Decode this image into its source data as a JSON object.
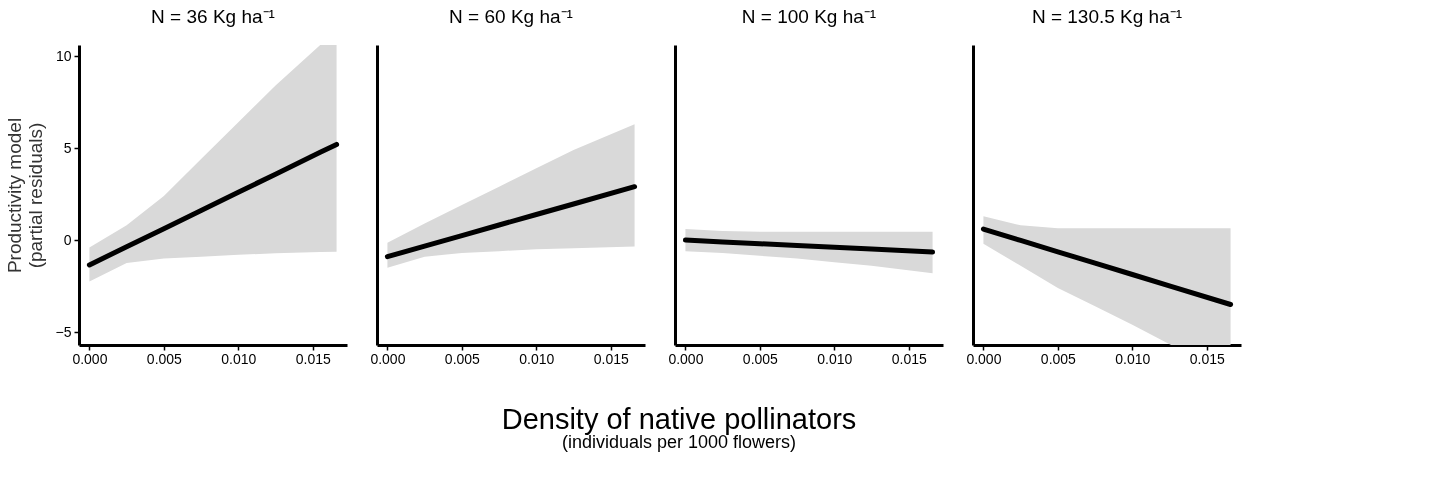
{
  "chart_data": [
    {
      "type": "line",
      "title": "N = 36 Kg ha⁻¹",
      "ylabel": "Productivity model\n(partial residuals)",
      "xlabel": "Density of native pollinators\n(individuals per 1000 flowers)",
      "xlim": [
        -0.0007,
        0.0173
      ],
      "ylim": [
        -5.7,
        10.6
      ],
      "grid": false,
      "line_style": "solid",
      "xticks": [
        {
          "value": 0,
          "label": "0.000"
        },
        {
          "value": 0.005,
          "label": "0.005"
        },
        {
          "value": 0.01,
          "label": "0.010"
        },
        {
          "value": 0.015,
          "label": "0.015"
        }
      ],
      "yticks": [
        -5,
        0,
        5,
        10
      ],
      "series": [
        {
          "color": "#000000",
          "x": [
            0,
            0.0025,
            0.005,
            0.0075,
            0.01,
            0.0125,
            0.0155,
            0.0166
          ],
          "values": [
            -1.35,
            -0.36,
            0.62,
            1.61,
            2.6,
            3.58,
            4.77,
            5.2
          ],
          "lower": [
            -2.25,
            -1.25,
            -1.0,
            -0.9,
            -0.8,
            -0.72,
            -0.65,
            -0.63
          ],
          "upper": [
            -0.4,
            0.8,
            2.4,
            4.4,
            6.4,
            8.4,
            10.6,
            10.6
          ]
        }
      ]
    },
    {
      "type": "line",
      "title": "N = 60 Kg ha⁻¹",
      "tick_labels": "x",
      "xlim": [
        -0.0007,
        0.0173
      ],
      "ylim": [
        -5.7,
        10.6
      ],
      "grid": false,
      "line_style": "solid",
      "xticks": [
        {
          "value": 0,
          "label": "0.000"
        },
        {
          "value": 0.005,
          "label": "0.005"
        },
        {
          "value": 0.01,
          "label": "0.010"
        },
        {
          "value": 0.015,
          "label": "0.015"
        }
      ],
      "series": [
        {
          "color": "#000000",
          "x": [
            0,
            0.0025,
            0.005,
            0.0075,
            0.01,
            0.0125,
            0.0166
          ],
          "values": [
            -0.9,
            -0.33,
            0.24,
            0.82,
            1.39,
            1.96,
            2.9
          ],
          "lower": [
            -1.5,
            -0.9,
            -0.7,
            -0.6,
            -0.5,
            -0.45,
            -0.35
          ],
          "upper": [
            -0.15,
            0.9,
            1.9,
            2.9,
            3.9,
            4.9,
            6.3
          ]
        }
      ]
    },
    {
      "type": "line",
      "title": "N = 100 Kg ha⁻¹",
      "tick_labels": "x",
      "xlim": [
        -0.0007,
        0.0173
      ],
      "ylim": [
        -5.7,
        10.6
      ],
      "grid": false,
      "line_style": "solid",
      "xticks": [
        {
          "value": 0,
          "label": "0.000"
        },
        {
          "value": 0.005,
          "label": "0.005"
        },
        {
          "value": 0.01,
          "label": "0.010"
        },
        {
          "value": 0.015,
          "label": "0.015"
        }
      ],
      "series": [
        {
          "color": "#000000",
          "x": [
            0,
            0.0025,
            0.005,
            0.0075,
            0.01,
            0.0125,
            0.0166
          ],
          "values": [
            0,
            -0.1,
            -0.2,
            -0.29,
            -0.39,
            -0.49,
            -0.65
          ],
          "lower": [
            -0.6,
            -0.7,
            -0.85,
            -1.0,
            -1.2,
            -1.4,
            -1.8
          ],
          "upper": [
            0.6,
            0.5,
            0.45,
            0.45,
            0.45,
            0.45,
            0.45
          ]
        }
      ]
    },
    {
      "type": "line",
      "title": "N = 130.5 Kg ha⁻¹",
      "tick_labels": "x",
      "xlim": [
        -0.0007,
        0.0173
      ],
      "ylim": [
        -5.7,
        10.6
      ],
      "grid": false,
      "line_style": "solid",
      "xticks": [
        {
          "value": 0,
          "label": "0.000"
        },
        {
          "value": 0.005,
          "label": "0.005"
        },
        {
          "value": 0.01,
          "label": "0.010"
        },
        {
          "value": 0.015,
          "label": "0.015"
        }
      ],
      "series": [
        {
          "color": "#000000",
          "x": [
            0,
            0.0025,
            0.005,
            0.0075,
            0.01,
            0.0126,
            0.0166
          ],
          "values": [
            0.6,
            -0.02,
            -0.64,
            -1.25,
            -1.87,
            -2.51,
            -3.5
          ],
          "lower": [
            -0.2,
            -1.4,
            -2.6,
            -3.6,
            -4.6,
            -5.7,
            -5.7
          ],
          "upper": [
            1.3,
            0.8,
            0.65,
            0.65,
            0.65,
            0.65,
            0.65
          ]
        }
      ]
    }
  ]
}
